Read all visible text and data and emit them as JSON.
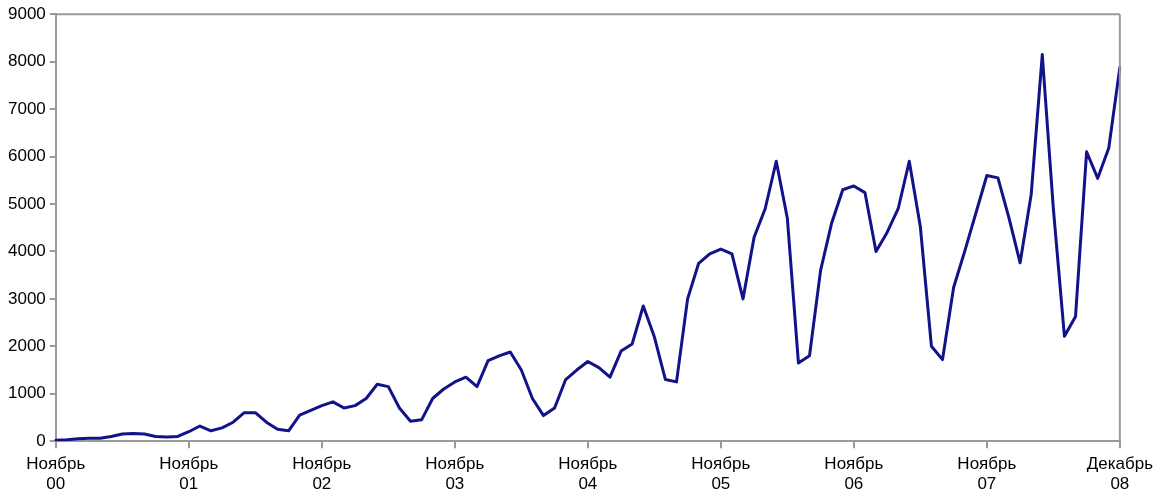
{
  "chart_data": {
    "type": "line",
    "categories": [
      "Ноябрь\n00",
      null,
      null,
      null,
      null,
      null,
      null,
      null,
      null,
      null,
      null,
      null,
      "Ноябрь\n01",
      null,
      null,
      null,
      null,
      null,
      null,
      null,
      null,
      null,
      null,
      null,
      "Ноябрь\n02",
      null,
      null,
      null,
      null,
      null,
      null,
      null,
      null,
      null,
      null,
      null,
      "Ноябрь\n03",
      null,
      null,
      null,
      null,
      null,
      null,
      null,
      null,
      null,
      null,
      null,
      "Ноябрь\n04",
      null,
      null,
      null,
      null,
      null,
      null,
      null,
      null,
      null,
      null,
      null,
      "Ноябрь\n05",
      null,
      null,
      null,
      null,
      null,
      null,
      null,
      null,
      null,
      null,
      null,
      "Ноябрь\n06",
      null,
      null,
      null,
      null,
      null,
      null,
      null,
      null,
      null,
      null,
      null,
      "Ноябрь\n07",
      null,
      null,
      null,
      null,
      null,
      null,
      null,
      null,
      null,
      null,
      null,
      "Декабрь\n08"
    ],
    "series": [
      {
        "color": "#12128a",
        "values": [
          20,
          30,
          50,
          60,
          60,
          100,
          150,
          160,
          150,
          100,
          90,
          100,
          200,
          320,
          220,
          280,
          400,
          600,
          600,
          400,
          250,
          220,
          550,
          650,
          750,
          830,
          700,
          750,
          900,
          1200,
          1150,
          700,
          420,
          450,
          900,
          1100,
          1250,
          1350,
          1150,
          1700,
          1800,
          1880,
          1500,
          900,
          540,
          700,
          1300,
          1500,
          1680,
          1550,
          1350,
          1900,
          2050,
          2850,
          2200,
          1300,
          1250,
          3000,
          3750,
          3950,
          4050,
          3950,
          3000,
          4300,
          4900,
          5900,
          4700,
          1650,
          1800,
          3600,
          4600,
          5300,
          5380,
          5240,
          4000,
          4400,
          4900,
          5900,
          4520,
          2000,
          1720,
          3240,
          4000,
          4800,
          5600,
          5550,
          4700,
          3760,
          5200,
          8150,
          4900,
          2210,
          2630,
          6100,
          5540,
          6180,
          7880
        ]
      }
    ],
    "ylim": [
      0,
      9000
    ],
    "yticks": [
      0,
      1000,
      2000,
      3000,
      4000,
      5000,
      6000,
      7000,
      8000,
      9000
    ],
    "grid": false,
    "legend": false,
    "marker": "none",
    "line_style": "solid"
  }
}
